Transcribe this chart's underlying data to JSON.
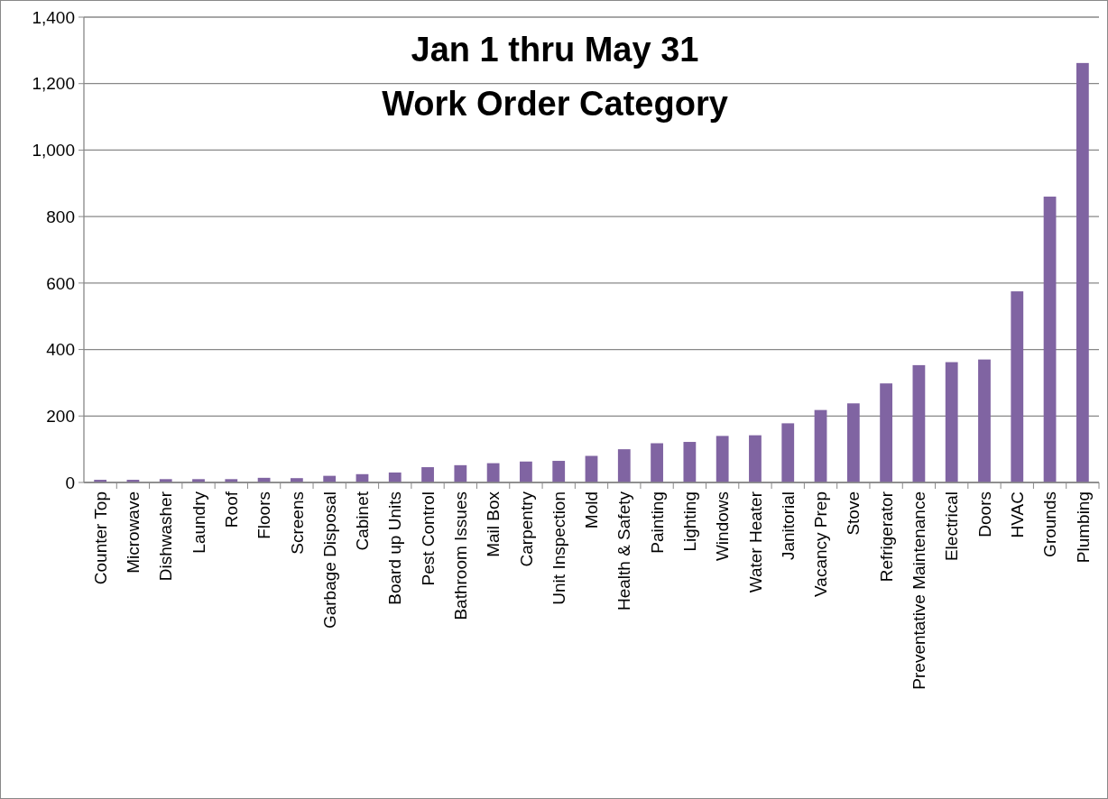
{
  "chart_data": {
    "type": "bar",
    "title": "Jan 1 thru May 31",
    "subtitle": "Work Order Category",
    "categories": [
      "Counter Top",
      "Microwave",
      "Dishwasher",
      "Laundry",
      "Roof",
      "Floors",
      "Screens",
      "Garbage Disposal",
      "Cabinet",
      "Board up Units",
      "Pest Control",
      "Bathroom Issues",
      "Mail Box",
      "Carpentry",
      "Unit Inspection",
      "Mold",
      "Health & Safety",
      "Painting",
      "Lighting",
      "Windows",
      "Water Heater",
      "Janitorial",
      "Vacancy Prep",
      "Stove",
      "Refrigerator",
      "Preventative Maintenance",
      "Electrical",
      "Doors",
      "HVAC",
      "Grounds",
      "Plumbing"
    ],
    "values": [
      8,
      8,
      10,
      10,
      10,
      14,
      13,
      20,
      25,
      30,
      46,
      52,
      58,
      63,
      65,
      80,
      100,
      118,
      122,
      140,
      142,
      178,
      218,
      238,
      298,
      353,
      362,
      370,
      575,
      860,
      1262
    ],
    "color": "#8064a2",
    "ylim": [
      0,
      1400
    ],
    "yticks": [
      0,
      {
        "value": 200,
        "label": "200"
      },
      {
        "value": 400,
        "label": "400"
      },
      {
        "value": 600,
        "label": "600"
      },
      {
        "value": 800,
        "label": "800"
      },
      {
        "value": 1000,
        "label": "1,000"
      },
      {
        "value": 1200,
        "label": "1,200"
      },
      {
        "value": 1400,
        "label": "1,400"
      }
    ],
    "grid": "y"
  }
}
